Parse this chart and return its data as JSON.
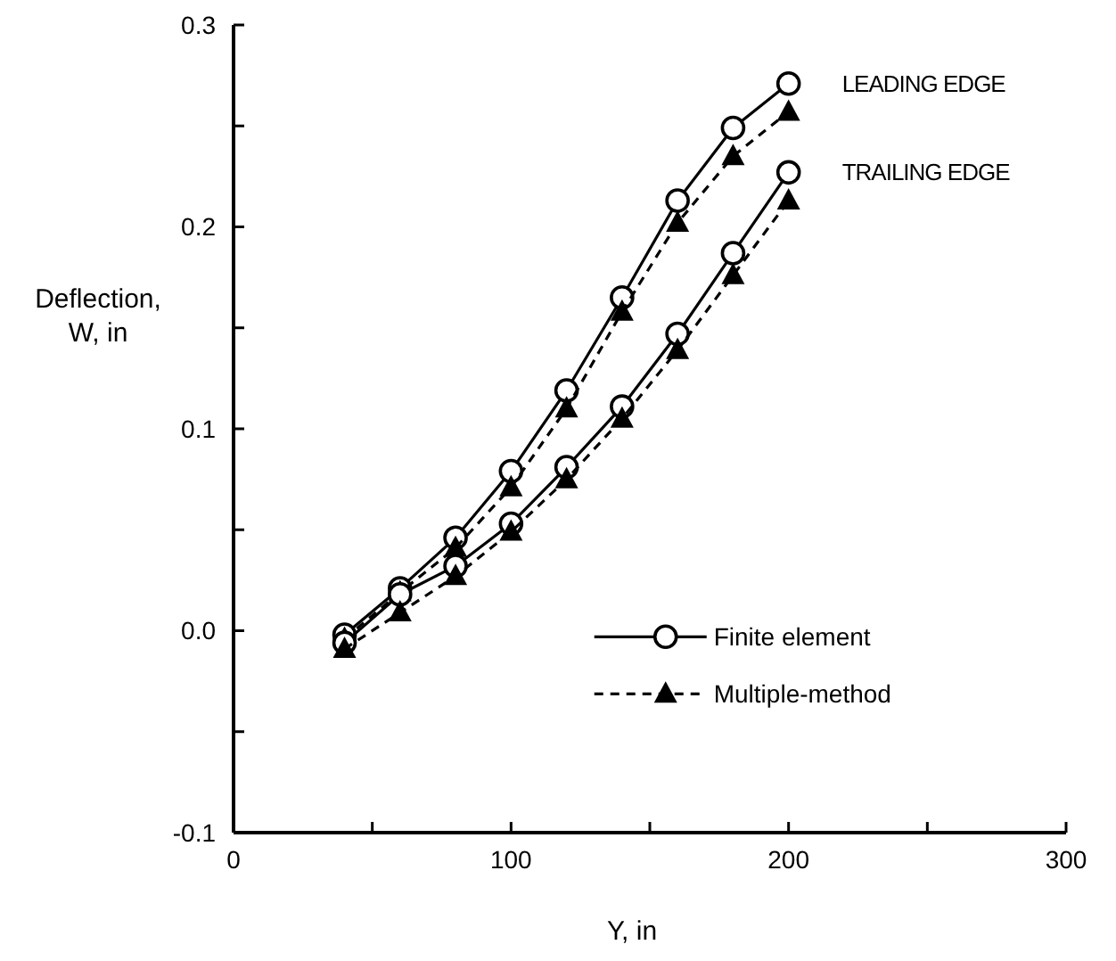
{
  "chart_data": {
    "type": "line",
    "xlabel": "Y, in",
    "ylabel": "Deflection, W, in",
    "x": [
      40,
      60,
      80,
      100,
      120,
      140,
      160,
      180,
      200
    ],
    "xlim": [
      0,
      300
    ],
    "ylim": [
      -0.1,
      0.3
    ],
    "xticks": [
      0,
      {
        "value": 50,
        "label": null
      },
      100,
      {
        "value": 150,
        "label": null
      },
      200,
      {
        "value": 250,
        "label": null
      },
      300
    ],
    "yticks": [
      {
        "value": -0.1,
        "label": "-0.1"
      },
      {
        "value": -0.05,
        "label": null
      },
      {
        "value": 0,
        "label": "0.0"
      },
      {
        "value": 0.05,
        "label": null
      },
      {
        "value": 0.1,
        "label": "0.1"
      },
      {
        "value": 0.15,
        "label": null
      },
      {
        "value": 0.2,
        "label": "0.2"
      },
      {
        "value": 0.25,
        "label": null
      },
      {
        "value": 0.3,
        "label": "0.3"
      }
    ],
    "grid": false,
    "legend": "bottom right",
    "series": [
      {
        "name": "Finite element",
        "color": "#000000",
        "marker": "circle",
        "line_style": "solid",
        "values": [
          -0.002,
          0.021,
          0.046,
          0.079,
          0.119,
          0.165,
          0.213,
          0.249,
          0.271
        ]
      },
      {
        "name": "Multiple-method",
        "color": "#000000",
        "marker": "triangle",
        "line_style": "dashed",
        "values": [
          -0.004,
          0.019,
          0.041,
          0.071,
          0.11,
          0.158,
          0.202,
          0.235,
          0.257
        ]
      },
      {
        "color": "#000000",
        "marker": "circle",
        "line_style": "solid",
        "values": [
          -0.006,
          0.018,
          0.032,
          0.053,
          0.081,
          0.111,
          0.147,
          0.187,
          0.227
        ]
      },
      {
        "color": "#000000",
        "marker": "triangle",
        "line_style": "dashed",
        "values": [
          -0.009,
          0.009,
          0.027,
          0.049,
          0.075,
          0.105,
          0.139,
          0.176,
          0.213
        ]
      }
    ],
    "annotations": [
      {
        "text": "LEADING EDGE",
        "x": 200,
        "y": 0.271
      },
      {
        "text": "TRAILING EDGE",
        "x": 200,
        "y": 0.227
      }
    ]
  }
}
